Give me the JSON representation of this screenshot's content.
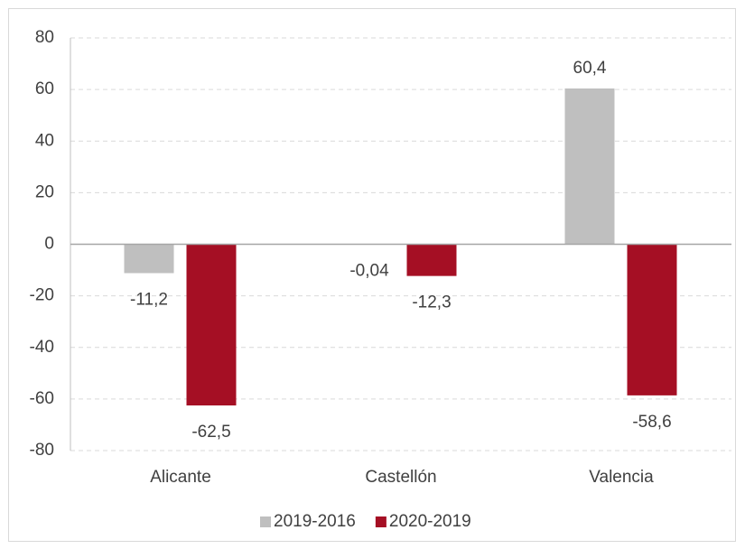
{
  "chart_data": {
    "type": "bar",
    "categories": [
      "Alicante",
      "Castellón",
      "Valencia"
    ],
    "series": [
      {
        "name": "2019-2016",
        "color": "#bfbfbf",
        "values": [
          -11.2,
          -0.04,
          60.4
        ],
        "value_labels": [
          "-11,2",
          "-0,04",
          "60,4"
        ]
      },
      {
        "name": "2020-2019",
        "color": "#a50f24",
        "values": [
          -62.5,
          -12.3,
          -58.6
        ],
        "value_labels": [
          "-62,5",
          "-12,3",
          "-58,6"
        ]
      }
    ],
    "ylim": [
      -80,
      80
    ],
    "yticks": [
      -80,
      -60,
      -40,
      -20,
      0,
      20,
      40,
      60,
      80
    ],
    "grid": true,
    "legend": "bottom"
  }
}
